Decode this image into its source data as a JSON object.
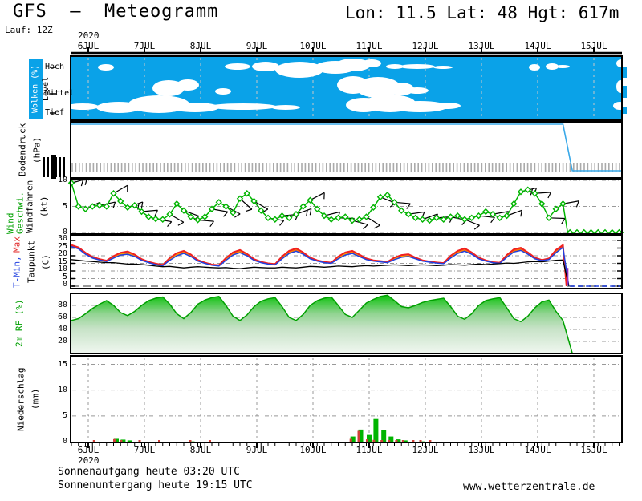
{
  "header": {
    "title": "GFS  —  Meteogramm",
    "location": "Lon: 11.5 Lat: 48 Hgt: 617m",
    "run": "Lauf: 12Z",
    "year": "2020"
  },
  "time_axis": {
    "days": [
      "6JUL",
      "7JUL",
      "8JUL",
      "9JUL",
      "10JUL",
      "11JUL",
      "12JUL",
      "13JUL",
      "14JUL",
      "15JUL"
    ]
  },
  "footer": {
    "sunrise": "Sonnenaufgang heute 03:20 UTC",
    "sunset": "Sonnenuntergang heute 19:15 UTC",
    "site": "www.wetterzentrale.de",
    "year": "2020"
  },
  "colors": {
    "cloud_bg": "#0AA2E8",
    "pressure_line": "#38A8E8",
    "green": "#00B400",
    "green_dark": "#00A000",
    "precip_red": "#D04038",
    "temp_blue": "#2040E0",
    "temp_red": "#F02020",
    "orange": "#FF8800",
    "yellow": "#EEDD22",
    "grid": "#999999",
    "black": "#000000"
  },
  "panels": {
    "clouds": {
      "label": "Wolken (%)",
      "axis_label": "Level",
      "levels": [
        "Hoch",
        "Mittel",
        "Tief"
      ]
    },
    "pressure": {
      "label": "Bodendruck",
      "unit": "(hPa)"
    },
    "wind": {
      "label_colored": "Wind Geschwi.",
      "label_black": "Windfahnen",
      "unit": "(kt)",
      "yticks": [
        10,
        5,
        0
      ]
    },
    "temp": {
      "label_min": "T-Min,",
      "label_max": "Max",
      "label_dew": "Taupunkt",
      "unit": "(C)",
      "yticks": [
        30,
        25,
        20,
        15,
        10,
        5,
        0
      ]
    },
    "rh": {
      "label": "2m RF (%)",
      "yticks": [
        80,
        60,
        40,
        20
      ]
    },
    "precip": {
      "label": "Niederschlag",
      "unit": "(mm)",
      "yticks": [
        15,
        10,
        5,
        0
      ]
    }
  },
  "chart_data": [
    {
      "id": "clouds",
      "type": "area",
      "title": "Wolken (%) / Level (Hoch-Mittel-Tief)",
      "note": "white cloud blobs on blue background; ellipses [x,y,rx,ry] relative to panel origin",
      "blobs": [
        [
          15,
          63,
          20,
          4
        ],
        [
          60,
          64,
          28,
          7
        ],
        [
          110,
          60,
          38,
          11
        ],
        [
          155,
          64,
          30,
          6
        ],
        [
          215,
          63,
          42,
          4
        ],
        [
          268,
          64,
          18,
          3
        ],
        [
          365,
          61,
          22,
          9
        ],
        [
          398,
          59,
          32,
          11
        ],
        [
          435,
          63,
          35,
          7
        ],
        [
          468,
          62,
          18,
          4
        ],
        [
          684,
          62,
          8,
          5
        ],
        [
          122,
          40,
          20,
          10
        ],
        [
          146,
          36,
          14,
          7
        ],
        [
          190,
          44,
          10,
          4
        ],
        [
          352,
          36,
          20,
          11
        ],
        [
          383,
          39,
          28,
          13
        ],
        [
          412,
          41,
          16,
          8
        ],
        [
          432,
          43,
          14,
          4
        ],
        [
          685,
          38,
          5,
          8
        ],
        [
          44,
          14,
          10,
          4
        ],
        [
          208,
          13,
          16,
          4
        ],
        [
          243,
          13,
          17,
          6
        ],
        [
          285,
          17,
          30,
          10
        ],
        [
          330,
          14,
          26,
          8
        ],
        [
          352,
          11,
          22,
          8
        ],
        [
          375,
          9,
          12,
          5
        ],
        [
          404,
          13,
          11,
          3
        ],
        [
          432,
          13,
          22,
          3
        ],
        [
          464,
          14,
          12,
          2
        ],
        [
          578,
          14,
          7,
          4
        ],
        [
          600,
          13,
          8,
          4
        ],
        [
          613,
          13,
          9,
          2
        ],
        [
          686,
          9,
          6,
          5
        ]
      ]
    },
    {
      "id": "pressure",
      "type": "line",
      "title": "Bodendruck (hPa)",
      "note": "trace pinned flat at panel top (labels degenerate) until ~14.6 JUL, then drops to panel bottom",
      "points_norm": [
        [
          0,
          1
        ],
        [
          210,
          1
        ],
        [
          214,
          0
        ],
        [
          236,
          0
        ]
      ]
    },
    {
      "id": "wind",
      "type": "line",
      "title": "Wind Geschwi. / Windfahnen (kt)",
      "ylim": [
        0,
        10
      ],
      "t_step_h": 3,
      "values": [
        9.5,
        5,
        4.5,
        5,
        5.2,
        5,
        7.5,
        6,
        4.8,
        5.2,
        4,
        3,
        2.6,
        2.5,
        3.5,
        5.5,
        4.2,
        3,
        2.4,
        3,
        4.5,
        5.8,
        5,
        3.8,
        6.5,
        7.5,
        6,
        4.2,
        2.8,
        2.5,
        3.2,
        2.8,
        3.5,
        5,
        6.2,
        4.5,
        3.2,
        2.5,
        2.8,
        3,
        2.3,
        2.5,
        3,
        4.8,
        6.8,
        7.2,
        5.8,
        4.2,
        3.5,
        2.8,
        2.5,
        2.3,
        2.8,
        2.5,
        3,
        3.2,
        2.5,
        2.8,
        3.2,
        4,
        3.5,
        2.8,
        3.2,
        5.5,
        7.8,
        8.2,
        7.5,
        5.5,
        2.8,
        4.5,
        5.5
      ],
      "end_zero_from_h": 212,
      "barbs": [
        [
          0,
          75,
          2
        ],
        [
          6,
          65,
          1
        ],
        [
          12,
          78,
          1
        ],
        [
          18,
          60,
          1
        ],
        [
          24,
          70,
          2
        ],
        [
          30,
          85,
          1
        ],
        [
          36,
          100,
          1
        ],
        [
          42,
          120,
          1
        ],
        [
          48,
          110,
          1
        ],
        [
          54,
          95,
          1
        ],
        [
          60,
          100,
          1
        ],
        [
          66,
          118,
          1
        ],
        [
          72,
          132,
          1
        ],
        [
          78,
          120,
          1
        ],
        [
          84,
          100,
          1
        ],
        [
          90,
          85,
          1
        ],
        [
          96,
          70,
          2
        ],
        [
          102,
          62,
          1
        ],
        [
          108,
          76,
          1
        ],
        [
          114,
          92,
          1
        ],
        [
          120,
          105,
          1
        ],
        [
          126,
          122,
          1
        ],
        [
          132,
          112,
          1
        ],
        [
          138,
          95,
          1
        ],
        [
          144,
          82,
          1
        ],
        [
          150,
          70,
          1
        ],
        [
          156,
          86,
          1
        ],
        [
          162,
          102,
          1
        ],
        [
          168,
          112,
          1
        ],
        [
          174,
          96,
          1
        ],
        [
          180,
          80,
          1
        ],
        [
          186,
          70,
          1
        ],
        [
          192,
          76,
          2
        ],
        [
          198,
          86,
          1
        ],
        [
          204,
          92,
          1
        ],
        [
          210,
          80,
          1
        ]
      ]
    },
    {
      "id": "temperature",
      "type": "line",
      "title": "T-Min, Max / Taupunkt (C)",
      "ylim": [
        0,
        30
      ],
      "t_step_h": 3,
      "t2m": [
        26,
        24.5,
        21,
        18.5,
        17.2,
        16.2,
        18.5,
        20.5,
        21,
        19.5,
        17,
        15.5,
        14.2,
        13.5,
        17,
        20,
        21.5,
        19.5,
        16.5,
        15,
        13.8,
        13.2,
        17,
        20.5,
        22,
        20,
        17,
        15.5,
        14.5,
        14,
        18,
        21.5,
        23,
        21,
        18,
        16.5,
        15.5,
        15,
        18,
        20.5,
        21.5,
        19.5,
        17.5,
        16.5,
        16,
        15.5,
        17.5,
        19,
        19.5,
        18,
        16.5,
        15.8,
        15.2,
        14.8,
        18.5,
        21.5,
        23,
        21,
        18,
        16.5,
        15.5,
        15,
        19,
        22.5,
        23.5,
        21,
        18,
        16.8,
        17.5,
        22,
        25.5
      ],
      "tmax_band": [
        27,
        25.5,
        22,
        19.2,
        17.8,
        16.8,
        19.8,
        22,
        22.8,
        20.8,
        17.8,
        16,
        14.8,
        14,
        18.5,
        21.8,
        23.2,
        20.8,
        17.2,
        15.5,
        14.2,
        13.8,
        18.5,
        22.2,
        23.8,
        21.2,
        17.8,
        16,
        15,
        14.5,
        19.5,
        23.2,
        24.8,
        22.2,
        18.8,
        17,
        16,
        15.5,
        19.5,
        22.2,
        23.2,
        20.8,
        18.2,
        17,
        16.5,
        16,
        18.8,
        20.5,
        21,
        18.8,
        17,
        16.2,
        15.6,
        15.2,
        20,
        23.2,
        24.8,
        22.2,
        18.8,
        17,
        15.8,
        15.4,
        20.5,
        24.2,
        25.2,
        22.2,
        18.8,
        17.2,
        18.2,
        23.8,
        27
      ],
      "dewpoint": [
        17.5,
        17,
        16.5,
        16.2,
        15.8,
        15.5,
        15.5,
        15,
        14.5,
        14.5,
        14.2,
        13.8,
        13.2,
        12.8,
        13,
        12.5,
        12,
        12.5,
        12.8,
        12.5,
        12.2,
        12,
        12.2,
        11.8,
        11.5,
        12,
        12.5,
        12.2,
        12,
        12,
        12.5,
        12.2,
        12,
        12.5,
        13,
        12.8,
        12.5,
        12.8,
        13.2,
        13,
        12.8,
        13.2,
        13.5,
        13.2,
        13.5,
        13.8,
        14,
        13.8,
        13.5,
        13.8,
        14,
        13.8,
        13.5,
        13.8,
        14.2,
        14,
        13.8,
        14.2,
        14.5,
        14.2,
        14.5,
        14.8,
        15.2,
        15,
        15.5,
        16,
        16.2,
        16,
        16.5,
        17,
        17.2
      ]
    },
    {
      "id": "humidity",
      "type": "area",
      "title": "2m RF (%)",
      "ylim": [
        0,
        100
      ],
      "t_step_h": 3,
      "values": [
        55,
        58,
        66,
        75,
        82,
        88,
        80,
        68,
        63,
        70,
        80,
        88,
        92,
        94,
        82,
        66,
        58,
        68,
        82,
        89,
        93,
        95,
        80,
        62,
        55,
        64,
        78,
        87,
        91,
        93,
        78,
        60,
        55,
        65,
        80,
        88,
        92,
        94,
        80,
        65,
        60,
        72,
        84,
        90,
        95,
        97,
        88,
        78,
        76,
        80,
        85,
        88,
        90,
        92,
        78,
        62,
        57,
        66,
        80,
        88,
        91,
        93,
        76,
        58,
        53,
        62,
        76,
        86,
        89,
        70,
        55
      ],
      "end_zero_from_h": 214
    },
    {
      "id": "precip",
      "type": "bar",
      "title": "Niederschlag (mm)",
      "ylim": [
        0,
        17
      ],
      "note": "bars as [day_of_july, total_green_mm, convective_red_mm]",
      "bars": [
        [
          6.14,
          0,
          0.08
        ],
        [
          6.5,
          0.55,
          0.5
        ],
        [
          6.62,
          0.4,
          0.06
        ],
        [
          6.74,
          0.25,
          0
        ],
        [
          6.95,
          0,
          0.07
        ],
        [
          7.3,
          0,
          0.06
        ],
        [
          7.85,
          0.05,
          0.08
        ],
        [
          8.2,
          0,
          0.05
        ],
        [
          10.71,
          1.0,
          0.55
        ],
        [
          10.85,
          2.35,
          2.1
        ],
        [
          11.0,
          1.3,
          0.45
        ],
        [
          11.12,
          4.4,
          0.35
        ],
        [
          11.26,
          2.2,
          0.1
        ],
        [
          11.39,
          1.0,
          0.15
        ],
        [
          11.52,
          0.45,
          0.1
        ],
        [
          11.64,
          0.25,
          0.05
        ],
        [
          11.82,
          0,
          0.1
        ],
        [
          11.95,
          0.05,
          0.12
        ],
        [
          12.12,
          0,
          0.07
        ]
      ]
    }
  ]
}
